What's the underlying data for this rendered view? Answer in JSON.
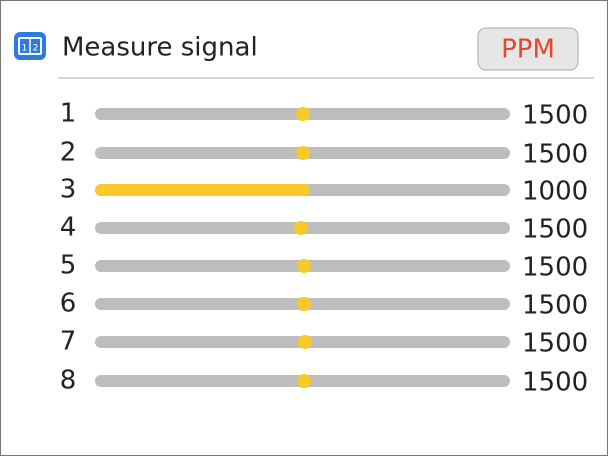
{
  "header": {
    "title": "Measure signal",
    "mode": "PPM"
  },
  "channels": [
    {
      "label": "1",
      "value": 1500
    },
    {
      "label": "2",
      "value": 1500
    },
    {
      "label": "3",
      "value": 1000
    },
    {
      "label": "4",
      "value": 1500
    },
    {
      "label": "5",
      "value": 1500
    },
    {
      "label": "6",
      "value": 1500
    },
    {
      "label": "7",
      "value": 1500
    },
    {
      "label": "8",
      "value": 1500
    }
  ]
}
